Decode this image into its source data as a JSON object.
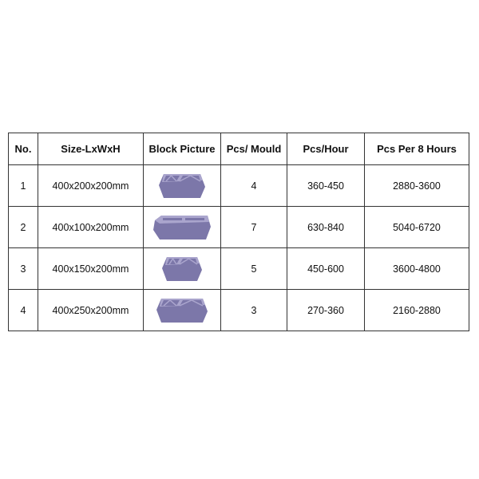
{
  "table": {
    "headers": [
      "No.",
      "Size-LxWxH",
      "Block Picture",
      "Pcs/ Mould",
      "Pcs/Hour",
      "Pcs Per 8 Hours"
    ],
    "rows": [
      {
        "no": "1",
        "size": "400x200x200mm",
        "picture": "hollow-block-2-cavity",
        "pcs_mould": "4",
        "pcs_hour": "360-450",
        "pcs_8h": "2880-3600"
      },
      {
        "no": "2",
        "size": "400x100x200mm",
        "picture": "hollow-block-thin",
        "pcs_mould": "7",
        "pcs_hour": "630-840",
        "pcs_8h": "5040-6720"
      },
      {
        "no": "3",
        "size": "400x150x200mm",
        "picture": "hollow-block-2-cavity",
        "pcs_mould": "5",
        "pcs_hour": "450-600",
        "pcs_8h": "3600-4800"
      },
      {
        "no": "4",
        "size": "400x250x200mm",
        "picture": "hollow-block-2-cavity",
        "pcs_mould": "3",
        "pcs_hour": "270-360",
        "pcs_8h": "2160-2880"
      }
    ]
  },
  "colors": {
    "block_body": "#7c77a9",
    "block_top": "#aaa5cd",
    "border": "#333333"
  }
}
